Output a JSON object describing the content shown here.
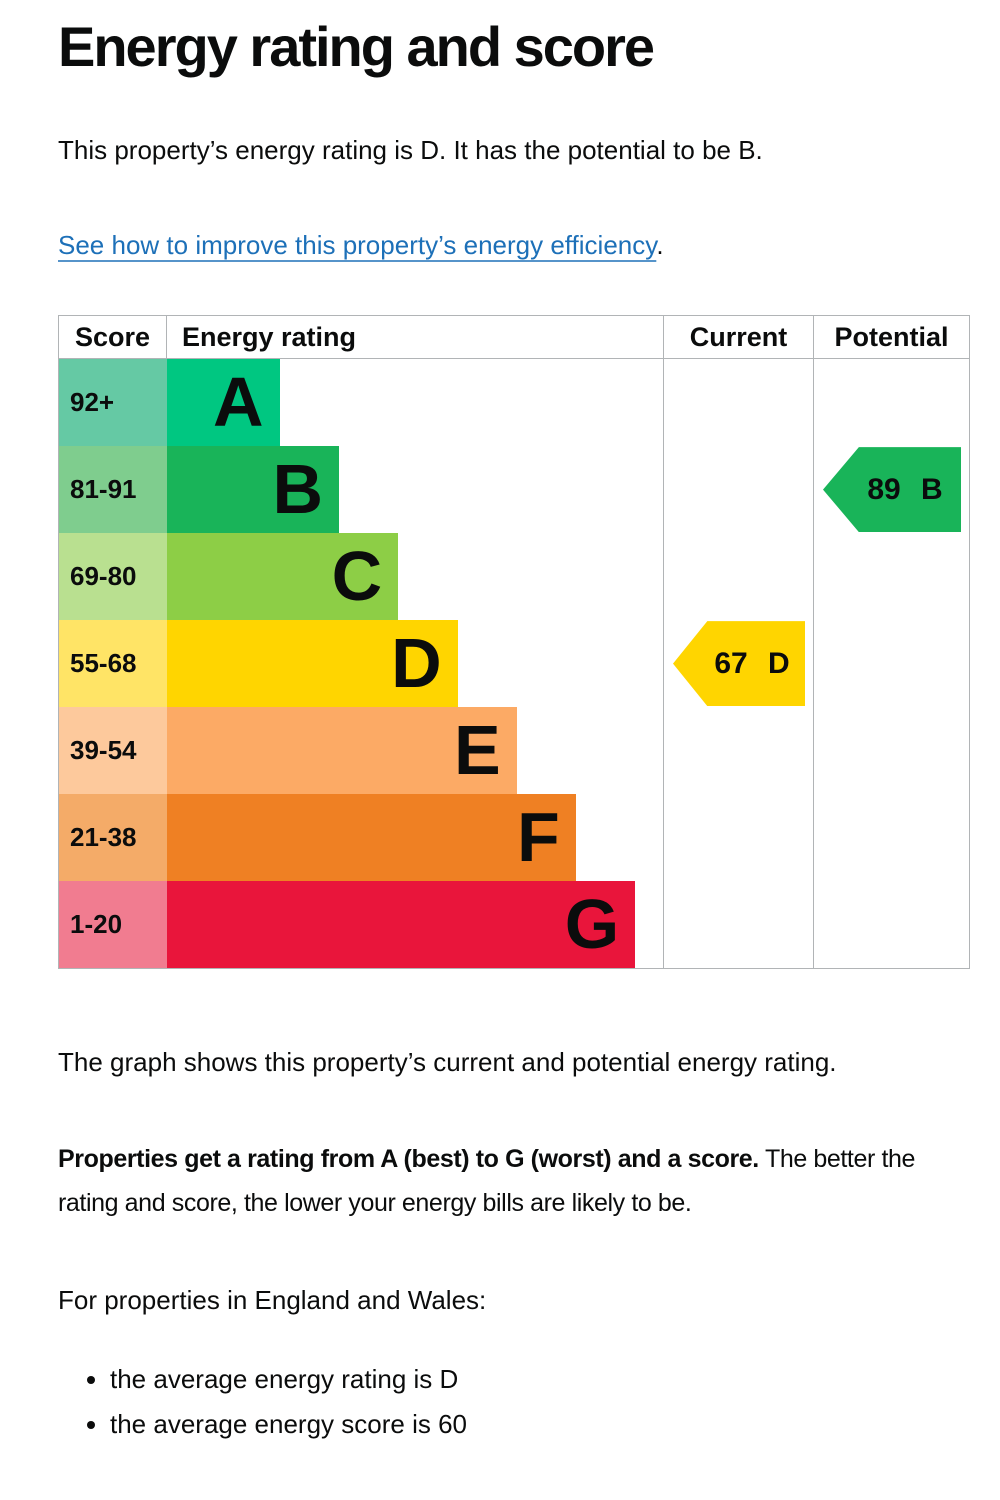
{
  "page": {
    "title": "Energy rating and score",
    "intro": "This property’s energy rating is D. It has the potential to be B.",
    "improve_link": "See how to improve this property’s energy efficiency",
    "improve_link_suffix": ".",
    "caption": "The graph shows this property’s current and potential energy rating.",
    "explain_bold": "Properties get a rating from A (best) to G (worst) and a score.",
    "explain_rest": "The better the rating and score, the lower your energy bills are likely to be.",
    "region_line": "For properties in England and Wales:",
    "bullets": [
      "the average energy rating is D",
      "the average energy score is 60"
    ]
  },
  "graph": {
    "headers": {
      "score": "Score",
      "rating": "Energy rating",
      "current": "Current",
      "potential": "Potential"
    },
    "bands": [
      {
        "score": "92+",
        "letter": "A",
        "color": "#00c781",
        "tint": "#65c9a4",
        "width_pct": 22.7
      },
      {
        "score": "81-91",
        "letter": "B",
        "color": "#19b459",
        "tint": "#7fcd8e",
        "width_pct": 34.7
      },
      {
        "score": "69-80",
        "letter": "C",
        "color": "#8dce46",
        "tint": "#b9e090",
        "width_pct": 46.6
      },
      {
        "score": "55-68",
        "letter": "D",
        "color": "#ffd500",
        "tint": "#ffe466",
        "width_pct": 58.6
      },
      {
        "score": "39-54",
        "letter": "E",
        "color": "#fcaa65",
        "tint": "#fdc99c",
        "width_pct": 70.5
      },
      {
        "score": "21-38",
        "letter": "F",
        "color": "#ef8023",
        "tint": "#f4ab68",
        "width_pct": 82.4
      },
      {
        "score": "1-20",
        "letter": "G",
        "color": "#e9153b",
        "tint": "#f17c90",
        "width_pct": 94.4
      }
    ],
    "current": {
      "label": "67 D",
      "score": 67,
      "band": "D",
      "color": "#ffd500"
    },
    "potential": {
      "label": "89 B",
      "score": 89,
      "band": "B",
      "color": "#19b459"
    }
  },
  "chart_data": {
    "type": "bar",
    "title": "Energy rating and score",
    "columns": [
      "Score",
      "Energy rating",
      "Current",
      "Potential"
    ],
    "categories": [
      "A",
      "B",
      "C",
      "D",
      "E",
      "F",
      "G"
    ],
    "band_score_ranges": [
      "92+",
      "81-91",
      "69-80",
      "55-68",
      "39-54",
      "21-38",
      "1-20"
    ],
    "band_colors": [
      "#00c781",
      "#19b459",
      "#8dce46",
      "#ffd500",
      "#fcaa65",
      "#ef8023",
      "#e9153b"
    ],
    "bar_lengths_pct": [
      22.7,
      34.7,
      46.6,
      58.6,
      70.5,
      82.4,
      94.4
    ],
    "current": {
      "score": 67,
      "band": "D"
    },
    "potential": {
      "score": 89,
      "band": "B"
    },
    "legend_position": "none",
    "grid": false
  },
  "colors": {
    "text": "#0b0c0c",
    "link": "#1d70b8",
    "border": "#b1b4b6"
  }
}
